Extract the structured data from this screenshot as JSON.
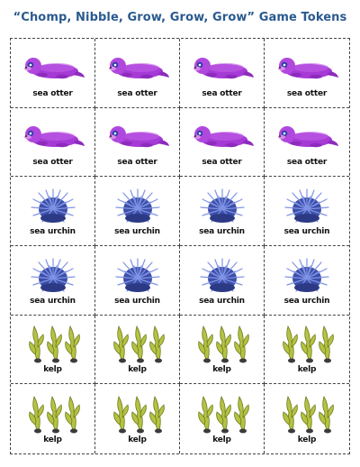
{
  "title": "“Chomp, Nibble, Grow, Grow, Grow” Game Tokens",
  "tokens": [
    {
      "label": "sea otter",
      "icon": "sea-otter"
    },
    {
      "label": "sea otter",
      "icon": "sea-otter"
    },
    {
      "label": "sea otter",
      "icon": "sea-otter"
    },
    {
      "label": "sea otter",
      "icon": "sea-otter"
    },
    {
      "label": "sea otter",
      "icon": "sea-otter"
    },
    {
      "label": "sea otter",
      "icon": "sea-otter"
    },
    {
      "label": "sea otter",
      "icon": "sea-otter"
    },
    {
      "label": "sea otter",
      "icon": "sea-otter"
    },
    {
      "label": "sea urchin",
      "icon": "sea-urchin"
    },
    {
      "label": "sea urchin",
      "icon": "sea-urchin"
    },
    {
      "label": "sea urchin",
      "icon": "sea-urchin"
    },
    {
      "label": "sea urchin",
      "icon": "sea-urchin"
    },
    {
      "label": "sea urchin",
      "icon": "sea-urchin"
    },
    {
      "label": "sea urchin",
      "icon": "sea-urchin"
    },
    {
      "label": "sea urchin",
      "icon": "sea-urchin"
    },
    {
      "label": "sea urchin",
      "icon": "sea-urchin"
    },
    {
      "label": "kelp",
      "icon": "kelp"
    },
    {
      "label": "kelp",
      "icon": "kelp"
    },
    {
      "label": "kelp",
      "icon": "kelp"
    },
    {
      "label": "kelp",
      "icon": "kelp"
    },
    {
      "label": "kelp",
      "icon": "kelp"
    },
    {
      "label": "kelp",
      "icon": "kelp"
    },
    {
      "label": "kelp",
      "icon": "kelp"
    },
    {
      "label": "kelp",
      "icon": "kelp"
    }
  ],
  "colors": {
    "title": "#2a5a8f",
    "otter": "#a63ad6",
    "urchin": "#5a6fc9",
    "kelp": "#a8b83a"
  }
}
